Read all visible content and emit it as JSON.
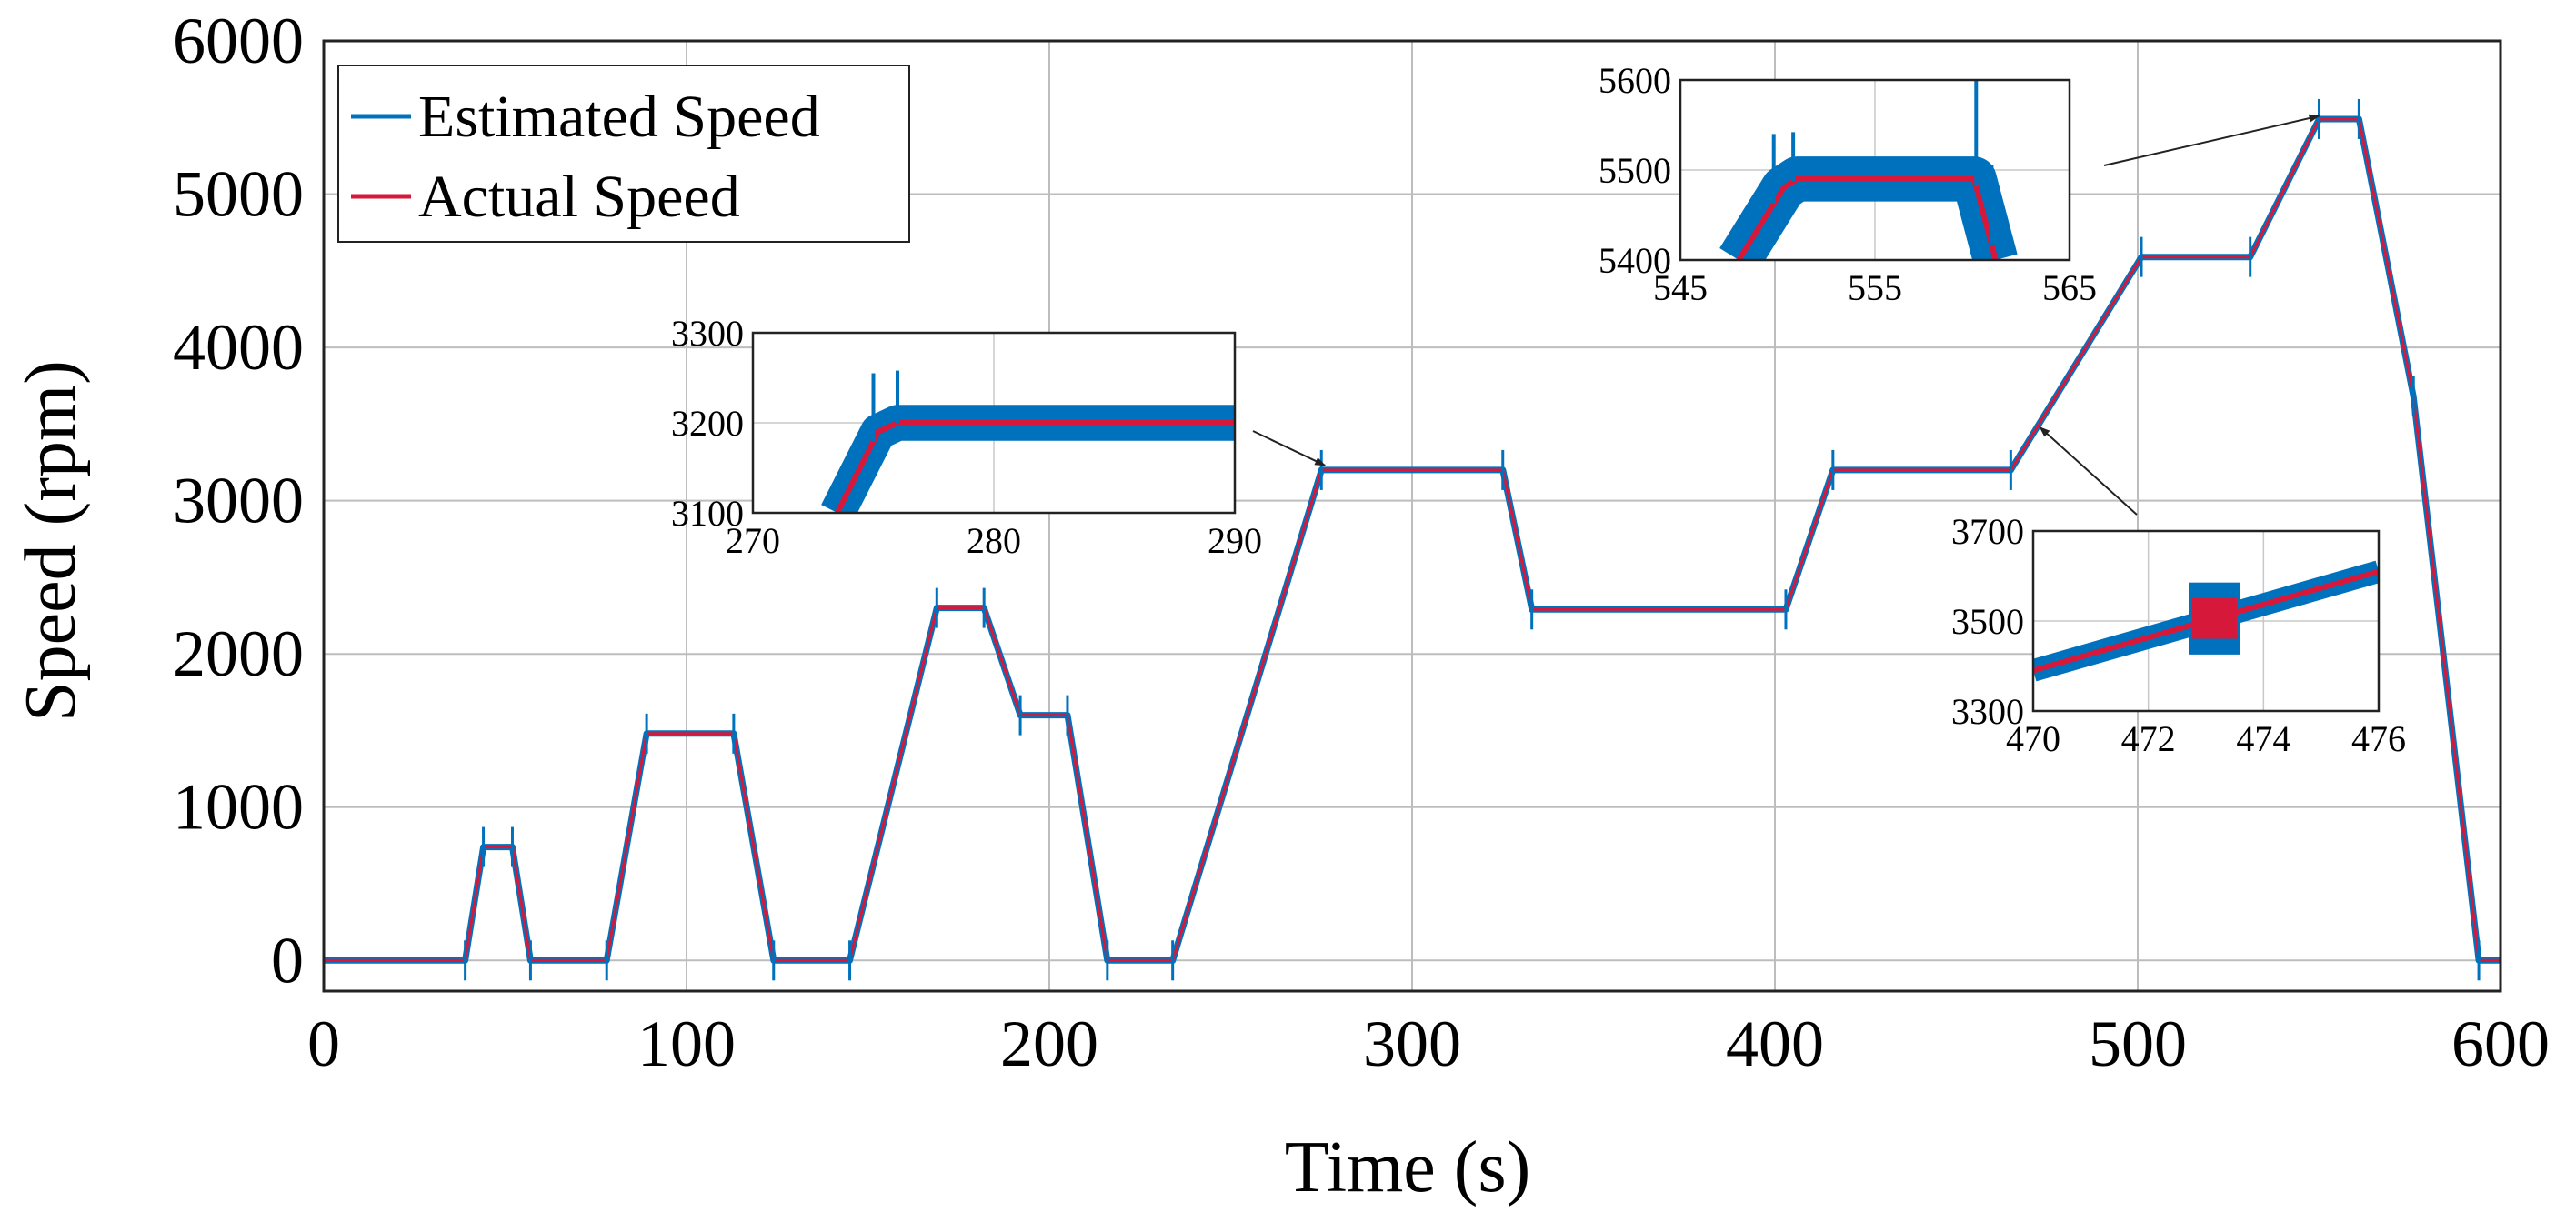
{
  "chart_data": {
    "type": "line",
    "title": "",
    "xlabel": "Time (s)",
    "ylabel": "Speed (rpm)",
    "xlim": [
      0,
      600
    ],
    "ylim": [
      -200,
      6000
    ],
    "grid": true,
    "legend_position": "top-left",
    "x_ticks": [
      "0",
      "100",
      "200",
      "300",
      "400",
      "500",
      "600"
    ],
    "y_ticks": [
      "0",
      "1000",
      "2000",
      "3000",
      "4000",
      "5000",
      "6000"
    ],
    "x_tick_values": [
      0,
      100,
      200,
      300,
      400,
      500,
      600
    ],
    "y_tick_values": [
      0,
      1000,
      2000,
      3000,
      4000,
      5000,
      6000
    ],
    "series": [
      {
        "name": "Estimated Speed",
        "color": "#0072BD",
        "x": [
          0,
          39,
          44,
          52,
          57,
          78,
          89,
          113,
          124,
          145,
          169,
          182,
          192,
          205,
          216,
          234,
          275,
          325,
          333,
          403,
          416,
          465,
          501,
          531,
          550,
          561,
          576,
          594,
          600
        ],
        "y": [
          0,
          0,
          740,
          740,
          0,
          0,
          1480,
          1480,
          0,
          0,
          2300,
          2300,
          1600,
          1600,
          0,
          0,
          3200,
          3200,
          2290,
          2290,
          3200,
          3200,
          4590,
          4590,
          5490,
          5490,
          3680,
          0,
          0
        ]
      },
      {
        "name": "Actual Speed",
        "color": "#D6193A",
        "x": [
          0,
          39,
          44,
          52,
          57,
          78,
          89,
          113,
          124,
          145,
          169,
          182,
          192,
          205,
          216,
          234,
          275,
          325,
          333,
          403,
          416,
          465,
          501,
          531,
          550,
          561,
          576,
          594,
          600
        ],
        "y": [
          0,
          0,
          740,
          740,
          0,
          0,
          1480,
          1480,
          0,
          0,
          2300,
          2300,
          1600,
          1600,
          0,
          0,
          3200,
          3200,
          2290,
          2290,
          3200,
          3200,
          4590,
          4590,
          5490,
          5490,
          3680,
          0,
          0
        ]
      }
    ],
    "insets": [
      {
        "name": "inset-3200",
        "xlim": [
          270,
          290
        ],
        "ylim": [
          3100,
          3300
        ],
        "x_ticks": [
          "270",
          "280",
          "290"
        ],
        "y_ticks": [
          "3100",
          "3200",
          "3300"
        ],
        "x_tick_values": [
          270,
          280,
          290
        ],
        "y_tick_values": [
          3100,
          3200,
          3300
        ],
        "points": [
          [
            273.5,
            3100
          ],
          [
            275.2,
            3190
          ],
          [
            276.0,
            3200
          ],
          [
            290,
            3200
          ]
        ],
        "band": 20,
        "spikes": [
          [
            275.0,
            3255
          ],
          [
            276.0,
            3258
          ]
        ],
        "points_to": [
          276,
          3230
        ]
      },
      {
        "name": "inset-5500",
        "xlim": [
          545,
          565
        ],
        "ylim": [
          5400,
          5600
        ],
        "x_ticks": [
          "545",
          "555",
          "565"
        ],
        "y_ticks": [
          "5400",
          "5500",
          "5600"
        ],
        "x_tick_values": [
          545,
          555,
          565
        ],
        "y_tick_values": [
          5400,
          5500,
          5600
        ],
        "points": [
          [
            548.0,
            5400
          ],
          [
            550.3,
            5480
          ],
          [
            551.0,
            5490
          ],
          [
            560.1,
            5490
          ],
          [
            561.2,
            5400
          ]
        ],
        "band": 25,
        "spikes": [
          [
            549.8,
            5540
          ],
          [
            550.8,
            5542
          ],
          [
            560.2,
            5600
          ],
          [
            561.0,
            5505
          ]
        ],
        "points_to": [
          550,
          5510
        ]
      },
      {
        "name": "inset-3500",
        "xlim": [
          470,
          476
        ],
        "ylim": [
          3300,
          3700
        ],
        "x_ticks": [
          "470",
          "472",
          "474",
          "476"
        ],
        "y_ticks": [
          "3300",
          "3500",
          "3700"
        ],
        "x_tick_values": [
          470,
          472,
          474,
          476
        ],
        "y_tick_values": [
          3300,
          3500,
          3700
        ],
        "points": [
          [
            470,
            3390
          ],
          [
            476,
            3610
          ]
        ],
        "band": 25,
        "noisy_region": [
          472.7,
          473.6
        ],
        "points_to": [
          473,
          3480
        ]
      }
    ]
  }
}
